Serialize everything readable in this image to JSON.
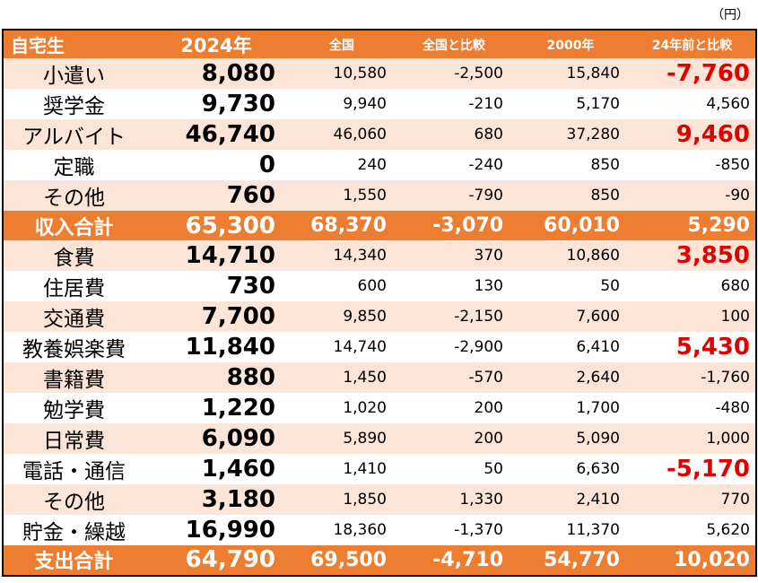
{
  "unit_label": "（円）",
  "header": [
    "自宅生",
    "2024年",
    "全国",
    "全国と比較",
    "2000年",
    "24年前と比較"
  ],
  "rows": [
    {
      "label": "小遣い",
      "v2024": "8,080",
      "national": "10,580",
      "diff_national": "-2,500",
      "v2000": "15,840",
      "diff_2000": "-7,760",
      "highlight": true,
      "total": false
    },
    {
      "label": "奨学金",
      "v2024": "9,730",
      "national": "9,940",
      "diff_national": "-210",
      "v2000": "5,170",
      "diff_2000": "4,560",
      "highlight": false,
      "total": false
    },
    {
      "label": "アルバイト",
      "v2024": "46,740",
      "national": "46,060",
      "diff_national": "680",
      "v2000": "37,280",
      "diff_2000": "9,460",
      "highlight": true,
      "total": false
    },
    {
      "label": "定職",
      "v2024": "0",
      "national": "240",
      "diff_national": "-240",
      "v2000": "850",
      "diff_2000": "-850",
      "highlight": false,
      "total": false
    },
    {
      "label": "その他",
      "v2024": "760",
      "national": "1,550",
      "diff_national": "-790",
      "v2000": "850",
      "diff_2000": "-90",
      "highlight": false,
      "total": false
    },
    {
      "label": "収入合計",
      "v2024": "65,300",
      "national": "68,370",
      "diff_national": "-3,070",
      "v2000": "60,010",
      "diff_2000": "5,290",
      "highlight": false,
      "total": true
    },
    {
      "label": "食費",
      "v2024": "14,710",
      "national": "14,340",
      "diff_national": "370",
      "v2000": "10,860",
      "diff_2000": "3,850",
      "highlight": true,
      "total": false
    },
    {
      "label": "住居費",
      "v2024": "730",
      "national": "600",
      "diff_national": "130",
      "v2000": "50",
      "diff_2000": "680",
      "highlight": false,
      "total": false
    },
    {
      "label": "交通費",
      "v2024": "7,700",
      "national": "9,850",
      "diff_national": "-2,150",
      "v2000": "7,600",
      "diff_2000": "100",
      "highlight": false,
      "total": false
    },
    {
      "label": "教養娯楽費",
      "v2024": "11,840",
      "national": "14,740",
      "diff_national": "-2,900",
      "v2000": "6,410",
      "diff_2000": "5,430",
      "highlight": true,
      "total": false
    },
    {
      "label": "書籍費",
      "v2024": "880",
      "national": "1,450",
      "diff_national": "-570",
      "v2000": "2,640",
      "diff_2000": "-1,760",
      "highlight": false,
      "total": false
    },
    {
      "label": "勉学費",
      "v2024": "1,220",
      "national": "1,020",
      "diff_national": "200",
      "v2000": "1,700",
      "diff_2000": "-480",
      "highlight": false,
      "total": false
    },
    {
      "label": "日常費",
      "v2024": "6,090",
      "national": "5,890",
      "diff_national": "200",
      "v2000": "5,090",
      "diff_2000": "1,000",
      "highlight": false,
      "total": false
    },
    {
      "label": "電話・通信",
      "v2024": "1,460",
      "national": "1,410",
      "diff_national": "50",
      "v2000": "6,630",
      "diff_2000": "-5,170",
      "highlight": true,
      "total": false
    },
    {
      "label": "その他",
      "v2024": "3,180",
      "national": "1,850",
      "diff_national": "1,330",
      "v2000": "2,410",
      "diff_2000": "770",
      "highlight": false,
      "total": false
    },
    {
      "label": "貯金・繰越",
      "v2024": "16,990",
      "national": "18,360",
      "diff_national": "-1,370",
      "v2000": "11,370",
      "diff_2000": "5,620",
      "highlight": false,
      "total": false
    },
    {
      "label": "支出合計",
      "v2024": "64,790",
      "national": "69,500",
      "diff_national": "-4,710",
      "v2000": "54,770",
      "diff_2000": "10,020",
      "highlight": false,
      "total": true
    }
  ],
  "colors": {
    "header_bg": "#ed7d31",
    "band_bg": "#fce4d6",
    "highlight_text": "#e00000"
  }
}
